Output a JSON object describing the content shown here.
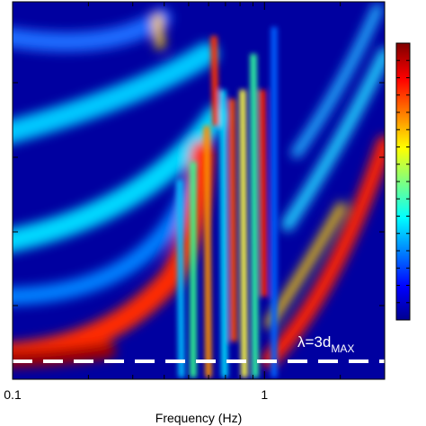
{
  "chart_data": {
    "type": "heatmap",
    "xlabel": "Frequency (Hz)",
    "xlim": [
      0.1,
      3
    ],
    "xticks": [
      0.1,
      1
    ],
    "xminorticks": [
      0.2,
      0.3,
      0.4,
      0.5,
      0.6,
      0.7,
      0.8,
      0.9,
      2,
      3
    ],
    "log_x": true,
    "annotation": {
      "text": "λ=3d",
      "subscript": "MAX"
    }
  }
}
